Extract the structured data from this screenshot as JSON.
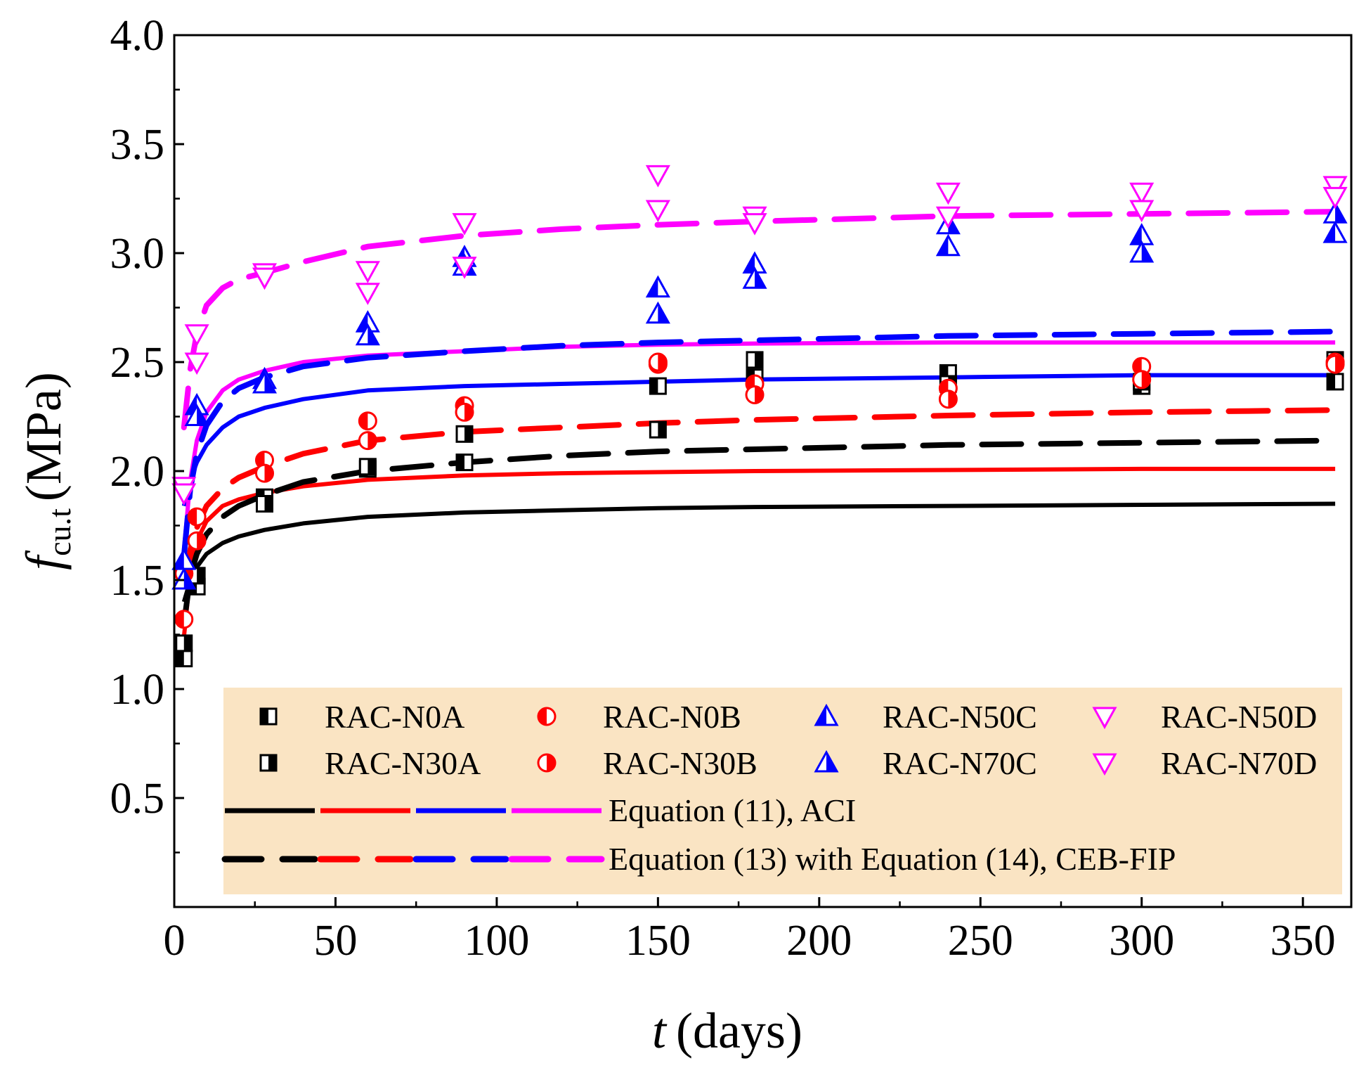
{
  "chart_data": {
    "type": "scatter",
    "xlabel_symbol": "t",
    "xlabel_unit": "(days)",
    "ylabel_symbol": "f",
    "ylabel_subscript": "cu.t",
    "ylabel_unit": "(MPa)",
    "xlim": [
      0,
      365
    ],
    "ylim": [
      0,
      4.0
    ],
    "xticks": [
      0,
      50,
      100,
      150,
      200,
      250,
      300,
      350
    ],
    "xtick_labels": [
      "0",
      "50",
      "100",
      "150",
      "200",
      "250",
      "300",
      "350"
    ],
    "yticks": [
      0.5,
      1.0,
      1.5,
      2.0,
      2.5,
      3.0,
      3.5,
      4.0
    ],
    "ytick_labels": [
      "0.5",
      "1.0",
      "1.5",
      "2.0",
      "2.5",
      "3.0",
      "3.5",
      "4.0"
    ],
    "colors": {
      "black": "#000000",
      "red": "#ff0000",
      "blue": "#0000ff",
      "magenta": "#ff00ff",
      "legend_bg": "#fae4c3"
    },
    "series": [
      {
        "name": "RAC-N0A",
        "marker": "square-left",
        "color": "#000000",
        "x": [
          3,
          7,
          28,
          60,
          90,
          150,
          180,
          240,
          300,
          360
        ],
        "y": [
          1.14,
          1.47,
          1.88,
          2.01,
          2.04,
          2.39,
          2.43,
          2.45,
          2.39,
          2.41
        ]
      },
      {
        "name": "RAC-N30A",
        "marker": "square-right",
        "color": "#000000",
        "x": [
          3,
          7,
          28,
          60,
          90,
          150,
          180,
          240,
          300,
          360
        ],
        "y": [
          1.21,
          1.52,
          1.85,
          2.02,
          2.17,
          2.19,
          2.51,
          2.4,
          2.41,
          2.51
        ]
      },
      {
        "name": "RAC-N0B",
        "marker": "circle-left",
        "color": "#ff0000",
        "x": [
          3,
          7,
          28,
          60,
          90,
          150,
          180,
          240,
          300,
          360
        ],
        "y": [
          1.32,
          1.79,
          2.05,
          2.23,
          2.3,
          2.49,
          2.4,
          2.38,
          2.48,
          2.5
        ]
      },
      {
        "name": "RAC-N30B",
        "marker": "circle-right",
        "color": "#ff0000",
        "x": [
          3,
          7,
          28,
          60,
          90,
          150,
          180,
          240,
          300,
          360
        ],
        "y": [
          1.53,
          1.68,
          1.99,
          2.14,
          2.27,
          2.5,
          2.35,
          2.33,
          2.42,
          2.49
        ]
      },
      {
        "name": "RAC-N50C",
        "marker": "triangle-up-left",
        "color": "#0000ff",
        "x": [
          3,
          7,
          28,
          60,
          90,
          150,
          180,
          240,
          300,
          360
        ],
        "y": [
          1.59,
          2.3,
          2.42,
          2.68,
          2.98,
          2.84,
          2.95,
          3.03,
          3.08,
          3.09
        ]
      },
      {
        "name": "RAC-N70C",
        "marker": "triangle-up-right",
        "color": "#0000ff",
        "x": [
          3,
          7,
          28,
          60,
          90,
          150,
          180,
          240,
          300,
          360
        ],
        "y": [
          1.5,
          2.25,
          2.4,
          2.62,
          2.94,
          2.72,
          2.88,
          3.13,
          3.0,
          3.18
        ]
      },
      {
        "name": "RAC-N50D",
        "marker": "triangle-down-top",
        "color": "#ff00ff",
        "x": [
          3,
          7,
          28,
          60,
          90,
          150,
          180,
          240,
          300,
          360
        ],
        "y": [
          1.93,
          2.63,
          2.91,
          2.92,
          3.14,
          3.36,
          3.17,
          3.28,
          3.28,
          3.31
        ]
      },
      {
        "name": "RAC-N70D",
        "marker": "triangle-down-bottom",
        "color": "#ff00ff",
        "x": [
          3,
          7,
          28,
          60,
          90,
          150,
          180,
          240,
          300,
          360
        ],
        "y": [
          1.9,
          2.5,
          2.89,
          2.82,
          2.94,
          3.2,
          3.14,
          3.17,
          3.2,
          3.26
        ]
      }
    ],
    "aci_curves": [
      {
        "color": "#000000",
        "x": [
          3,
          5,
          7,
          10,
          15,
          20,
          28,
          40,
          60,
          90,
          120,
          150,
          180,
          240,
          300,
          360
        ],
        "y": [
          1.4,
          1.5,
          1.56,
          1.62,
          1.67,
          1.7,
          1.73,
          1.76,
          1.79,
          1.81,
          1.82,
          1.83,
          1.835,
          1.84,
          1.845,
          1.85
        ]
      },
      {
        "color": "#ff0000",
        "x": [
          3,
          5,
          7,
          10,
          15,
          20,
          28,
          40,
          60,
          90,
          120,
          150,
          180,
          240,
          300,
          360
        ],
        "y": [
          1.24,
          1.53,
          1.68,
          1.77,
          1.84,
          1.87,
          1.9,
          1.93,
          1.96,
          1.98,
          1.99,
          1.995,
          2.0,
          2.005,
          2.01,
          2.01
        ]
      },
      {
        "color": "#0000ff",
        "x": [
          3,
          5,
          7,
          10,
          15,
          20,
          28,
          40,
          60,
          90,
          120,
          150,
          180,
          240,
          300,
          360
        ],
        "y": [
          1.84,
          1.96,
          2.04,
          2.12,
          2.2,
          2.25,
          2.29,
          2.33,
          2.37,
          2.39,
          2.4,
          2.41,
          2.42,
          2.43,
          2.44,
          2.44
        ]
      },
      {
        "color": "#ff00ff",
        "x": [
          3,
          5,
          7,
          10,
          15,
          20,
          28,
          40,
          60,
          90,
          120,
          150,
          180,
          240,
          300,
          360
        ],
        "y": [
          1.64,
          1.96,
          2.14,
          2.27,
          2.37,
          2.42,
          2.46,
          2.5,
          2.53,
          2.55,
          2.57,
          2.58,
          2.585,
          2.59,
          2.59,
          2.59
        ]
      }
    ],
    "ceb_curves": [
      {
        "color": "#000000",
        "x": [
          3,
          5,
          7,
          10,
          15,
          20,
          28,
          40,
          60,
          90,
          120,
          150,
          180,
          240,
          300,
          360
        ],
        "y": [
          1.3,
          1.52,
          1.62,
          1.71,
          1.79,
          1.84,
          1.89,
          1.95,
          2.0,
          2.04,
          2.07,
          2.09,
          2.1,
          2.12,
          2.13,
          2.14
        ]
      },
      {
        "color": "#ff0000",
        "x": [
          3,
          5,
          7,
          10,
          15,
          20,
          28,
          40,
          60,
          90,
          120,
          150,
          180,
          240,
          300,
          360
        ],
        "y": [
          1.48,
          1.64,
          1.74,
          1.84,
          1.92,
          1.97,
          2.02,
          2.08,
          2.14,
          2.18,
          2.2,
          2.22,
          2.235,
          2.255,
          2.27,
          2.28
        ]
      },
      {
        "color": "#0000ff",
        "x": [
          3,
          5,
          7,
          10,
          15,
          20,
          28,
          40,
          60,
          90,
          120,
          150,
          180,
          240,
          300,
          360
        ],
        "y": [
          1.61,
          1.92,
          2.08,
          2.21,
          2.32,
          2.38,
          2.43,
          2.48,
          2.52,
          2.55,
          2.575,
          2.59,
          2.6,
          2.62,
          2.63,
          2.64
        ]
      },
      {
        "color": "#ff00ff",
        "x": [
          3,
          5,
          7,
          10,
          15,
          20,
          28,
          40,
          60,
          90,
          120,
          150,
          180,
          240,
          300,
          360
        ],
        "y": [
          2.2,
          2.47,
          2.63,
          2.76,
          2.84,
          2.88,
          2.91,
          2.96,
          3.03,
          3.08,
          3.11,
          3.13,
          3.145,
          3.17,
          3.18,
          3.19
        ]
      }
    ],
    "legend_location": "bottom-right",
    "legend": {
      "markers": [
        "RAC-N0A",
        "RAC-N0B",
        "RAC-N50C",
        "RAC-N50D",
        "RAC-N30A",
        "RAC-N30B",
        "RAC-N70C",
        "RAC-N70D"
      ],
      "aci_label": "Equation (11), ACI",
      "ceb_label": "Equation (13) with Equation (14), CEB-FIP"
    }
  }
}
